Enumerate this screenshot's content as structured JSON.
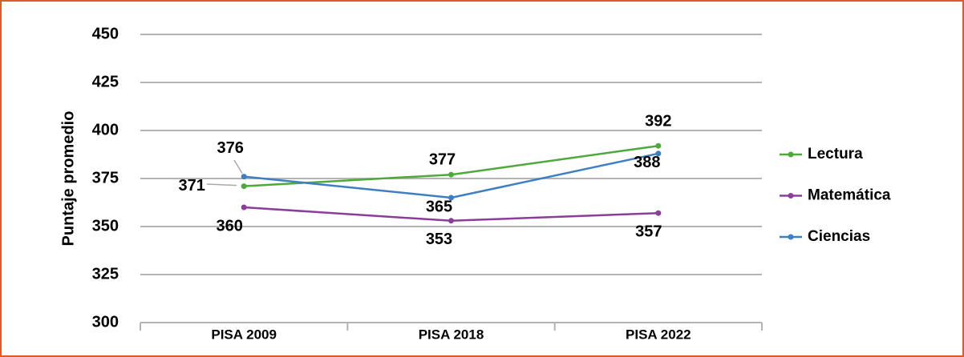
{
  "chart_data": {
    "type": "line",
    "y_label": "Puntaje promedio",
    "categories": [
      "PISA 2009",
      "PISA 2018",
      "PISA 2022"
    ],
    "series": [
      {
        "name": "Lectura",
        "color": "#4ea93b",
        "values": [
          371,
          377,
          392
        ]
      },
      {
        "name": "Matemática",
        "color": "#8a3d99",
        "values": [
          360,
          353,
          357
        ]
      },
      {
        "name": "Ciencias",
        "color": "#3e7fc1",
        "values": [
          376,
          365,
          388
        ]
      }
    ],
    "ylim": [
      300,
      450
    ],
    "yticks": [
      300,
      325,
      350,
      375,
      400,
      425,
      450
    ],
    "grid": true,
    "legend": "right"
  }
}
